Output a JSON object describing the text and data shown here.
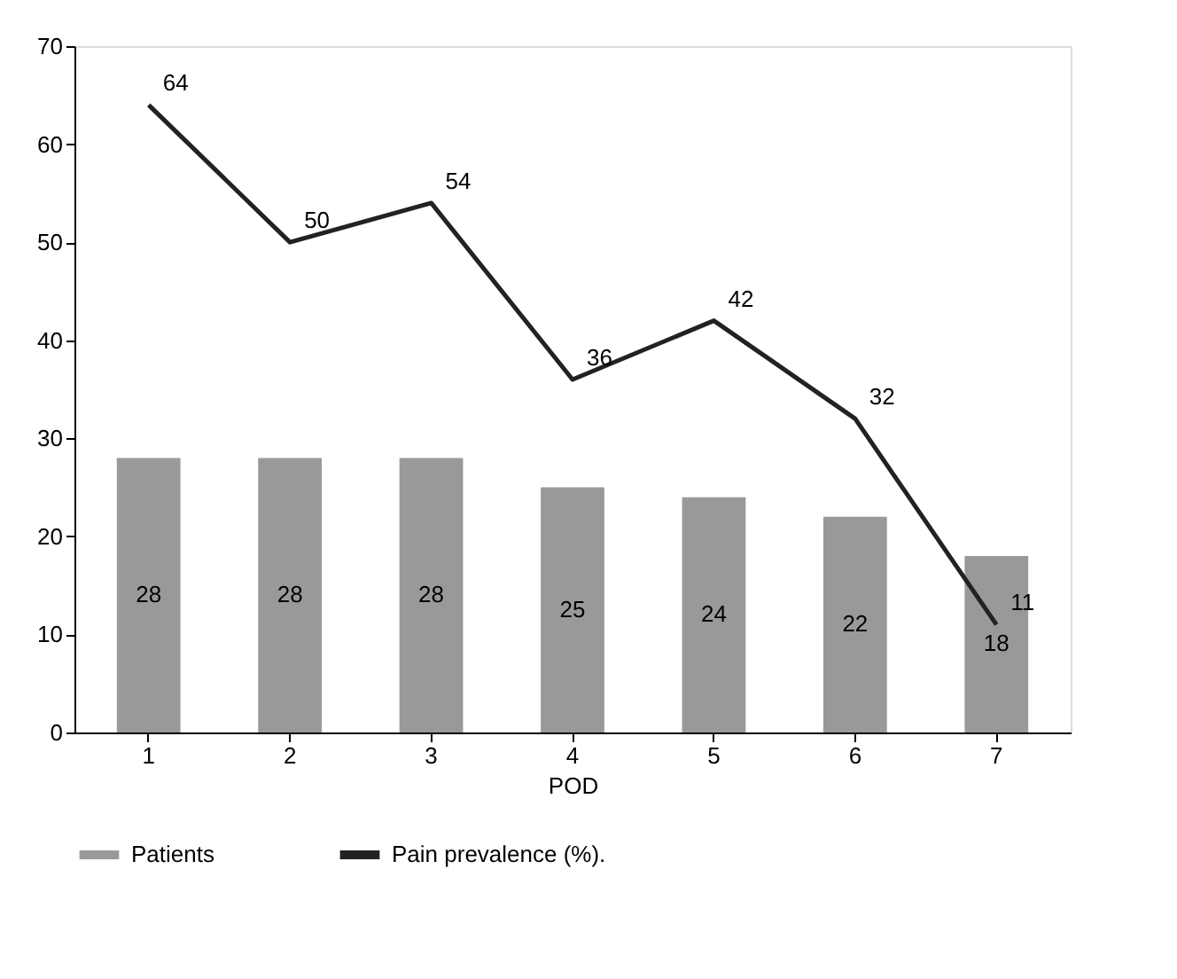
{
  "chart_data": {
    "type": "bar",
    "xlabel": "POD",
    "categories": [
      "1",
      "2",
      "3",
      "4",
      "5",
      "6",
      "7"
    ],
    "series": [
      {
        "name": "Patients",
        "color": "#999999",
        "values": [
          28,
          28,
          28,
          25,
          24,
          22,
          18
        ]
      },
      {
        "name": "Pain prevalence (%).",
        "type": "line",
        "color": "#222222",
        "values": [
          64,
          50,
          54,
          36,
          42,
          32,
          11
        ]
      }
    ],
    "ylim": [
      0,
      70
    ],
    "yticks": [
      0,
      10,
      20,
      30,
      40,
      50,
      60,
      70
    ],
    "data_labels": true,
    "legend": "bottom",
    "grid": false
  }
}
